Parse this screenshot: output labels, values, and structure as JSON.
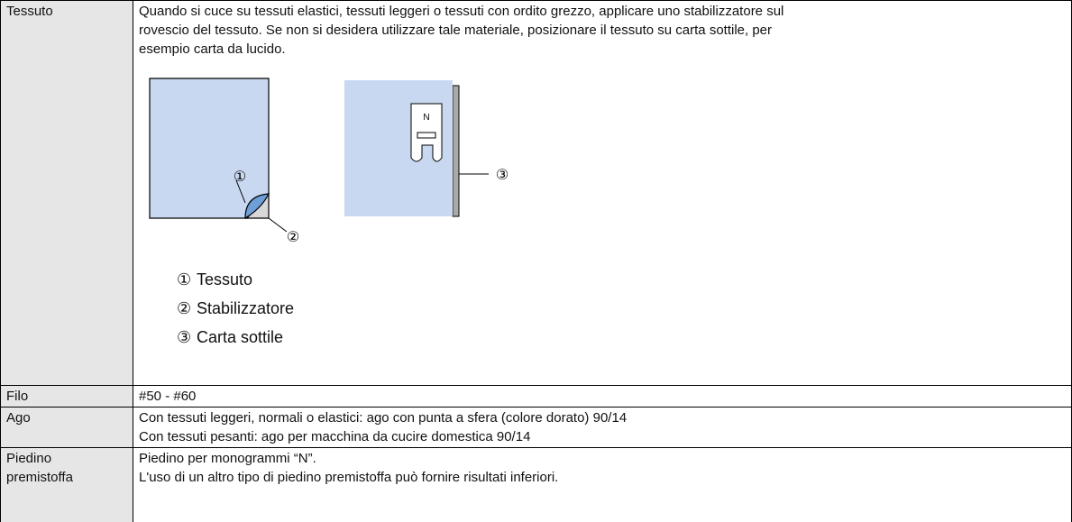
{
  "rows": [
    {
      "label": [
        "Tessuto"
      ],
      "lines": [
        "Quando si cuce su tessuti elastici, tessuti leggeri o tessuti con ordito grezzo, applicare uno stabilizzatore sul",
        "rovescio del tessuto. Se non si desidera utilizzare tale materiale, posizionare il tessuto su carta sottile, per",
        "esempio carta da lucido."
      ],
      "figure": {
        "callouts": [
          "①",
          "②",
          "③"
        ],
        "foot_label": "N"
      },
      "legend": [
        {
          "marker": "①",
          "text": "Tessuto"
        },
        {
          "marker": "②",
          "text": "Stabilizzatore"
        },
        {
          "marker": "③",
          "text": "Carta sottile"
        }
      ]
    },
    {
      "label": [
        "Filo"
      ],
      "lines": [
        "#50 - #60"
      ]
    },
    {
      "label": [
        "Ago"
      ],
      "lines": [
        "Con tessuti leggeri, normali o elastici: ago con punta a sfera (colore dorato) 90/14",
        "Con tessuti pesanti: ago per macchina da cucire domestica 90/14"
      ]
    },
    {
      "label": [
        "Piedino",
        "premistoffa"
      ],
      "lines": [
        "Piedino per monogrammi “N”.",
        "L'uso di un altro tipo di piedino premistoffa può fornire risultati inferiori."
      ]
    }
  ]
}
